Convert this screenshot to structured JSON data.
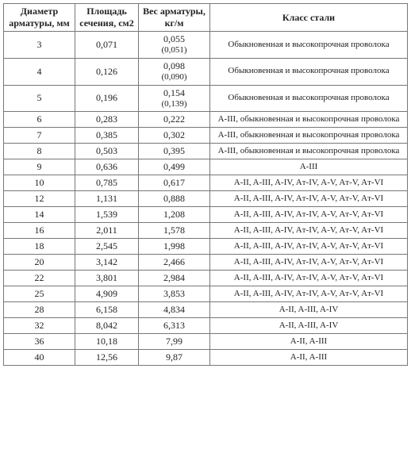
{
  "headers": {
    "diameter": "Диаметр арматуры, мм",
    "area": "Площадь сечения, см2",
    "weight": "Вес арматуры, кг/м",
    "steel_class": "Класс стали"
  },
  "rows": [
    {
      "d": "3",
      "area": "0,071",
      "weight": "0,055",
      "weight_sub": "(0,051)",
      "cls": "Обыкновенная и высокопрочная проволока"
    },
    {
      "d": "4",
      "area": "0,126",
      "weight": "0,098",
      "weight_sub": "(0,090)",
      "cls": "Обыкновенная и высокопрочная проволока"
    },
    {
      "d": "5",
      "area": "0,196",
      "weight": "0,154",
      "weight_sub": "(0,139)",
      "cls": "Обыкновенная и высокопрочная проволока"
    },
    {
      "d": "6",
      "area": "0,283",
      "weight": "0,222",
      "weight_sub": "",
      "cls": "A-III, обыкновенная и высокопрочная проволока"
    },
    {
      "d": "7",
      "area": "0,385",
      "weight": "0,302",
      "weight_sub": "",
      "cls": "A-III, обыкновенная и высокопрочная проволока"
    },
    {
      "d": "8",
      "area": "0,503",
      "weight": "0,395",
      "weight_sub": "",
      "cls": "A-III, обыкновенная и высокопрочная проволока"
    },
    {
      "d": "9",
      "area": "0,636",
      "weight": "0,499",
      "weight_sub": "",
      "cls": "A-III"
    },
    {
      "d": "10",
      "area": "0,785",
      "weight": "0,617",
      "weight_sub": "",
      "cls": "A-II, A-III, A-IV, Aт-IV, A-V, Aт-V, Aт-VI"
    },
    {
      "d": "12",
      "area": "1,131",
      "weight": "0,888",
      "weight_sub": "",
      "cls": "A-II, A-III, A-IV, Aт-IV, A-V, Aт-V, Aт-VI"
    },
    {
      "d": "14",
      "area": "1,539",
      "weight": "1,208",
      "weight_sub": "",
      "cls": "A-II, A-III, A-IV, Aт-IV, A-V, Aт-V, Aт-VI"
    },
    {
      "d": "16",
      "area": "2,011",
      "weight": "1,578",
      "weight_sub": "",
      "cls": "A-II, A-III, A-IV, Aт-IV, A-V, Aт-V, Aт-VI"
    },
    {
      "d": "18",
      "area": "2,545",
      "weight": "1,998",
      "weight_sub": "",
      "cls": "A-II, A-III, A-IV, Aт-IV, A-V, Aт-V, Aт-VI"
    },
    {
      "d": "20",
      "area": "3,142",
      "weight": "2,466",
      "weight_sub": "",
      "cls": "A-II, A-III, A-IV, Aт-IV, A-V, Aт-V, Aт-VI"
    },
    {
      "d": "22",
      "area": "3,801",
      "weight": "2,984",
      "weight_sub": "",
      "cls": "A-II, A-III, A-IV, Aт-IV, A-V, Aт-V, Aт-VI"
    },
    {
      "d": "25",
      "area": "4,909",
      "weight": "3,853",
      "weight_sub": "",
      "cls": "A-II, A-III, A-IV, Aт-IV, A-V, Aт-V, Aт-VI"
    },
    {
      "d": "28",
      "area": "6,158",
      "weight": "4,834",
      "weight_sub": "",
      "cls": "A-II, A-III, A-IV"
    },
    {
      "d": "32",
      "area": "8,042",
      "weight": "6,313",
      "weight_sub": "",
      "cls": "A-II, A-III, A-IV"
    },
    {
      "d": "36",
      "area": "10,18",
      "weight": "7,99",
      "weight_sub": "",
      "cls": "A-II, A-III"
    },
    {
      "d": "40",
      "area": "12,56",
      "weight": "9,87",
      "weight_sub": "",
      "cls": "A-II, A-III"
    }
  ]
}
